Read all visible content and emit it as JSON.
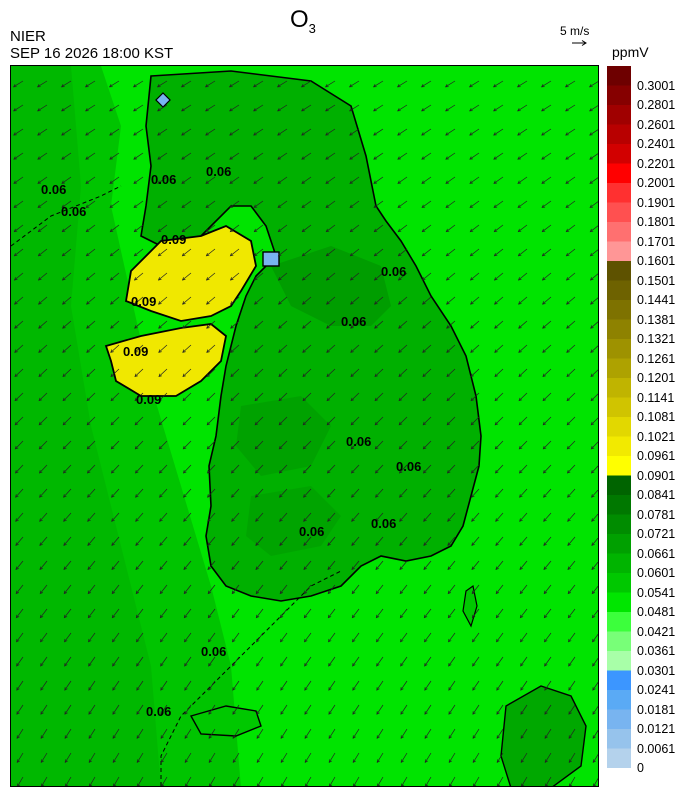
{
  "header": {
    "title_main": "O",
    "title_sub": "3",
    "agency": "NIER",
    "datetime": "SEP 16 2026 18:00 KST",
    "wind_reference": "5 m/s",
    "unit": "ppmV"
  },
  "contour_labels": [
    "0.06",
    "0.09"
  ],
  "colorbar": {
    "bins": [
      {
        "label": "0.3001",
        "color": "#6e0000"
      },
      {
        "label": "0.2801",
        "color": "#860000"
      },
      {
        "label": "0.2601",
        "color": "#a00000"
      },
      {
        "label": "0.2401",
        "color": "#b80000"
      },
      {
        "label": "0.2201",
        "color": "#d20000"
      },
      {
        "label": "0.2001",
        "color": "#ff0000"
      },
      {
        "label": "0.1901",
        "color": "#ff3030"
      },
      {
        "label": "0.1801",
        "color": "#ff5050"
      },
      {
        "label": "0.1701",
        "color": "#ff7070"
      },
      {
        "label": "0.1601",
        "color": "#ff9696"
      },
      {
        "label": "0.1501",
        "color": "#5e5200"
      },
      {
        "label": "0.1441",
        "color": "#6e6200"
      },
      {
        "label": "0.1381",
        "color": "#7e7200"
      },
      {
        "label": "0.1321",
        "color": "#8e8200"
      },
      {
        "label": "0.1261",
        "color": "#9e9200"
      },
      {
        "label": "0.1201",
        "color": "#aea200"
      },
      {
        "label": "0.1141",
        "color": "#c0b400"
      },
      {
        "label": "0.1081",
        "color": "#d0c400"
      },
      {
        "label": "0.1021",
        "color": "#e2d800"
      },
      {
        "label": "0.0961",
        "color": "#f2ea00"
      },
      {
        "label": "0.0901",
        "color": "#ffff00"
      },
      {
        "label": "0.0841",
        "color": "#006400"
      },
      {
        "label": "0.0781",
        "color": "#007800"
      },
      {
        "label": "0.0721",
        "color": "#008c00"
      },
      {
        "label": "0.0661",
        "color": "#00a000"
      },
      {
        "label": "0.0601",
        "color": "#00b400"
      },
      {
        "label": "0.0541",
        "color": "#00c800"
      },
      {
        "label": "0.0481",
        "color": "#00e600"
      },
      {
        "label": "0.0421",
        "color": "#3cff3c"
      },
      {
        "label": "0.0361",
        "color": "#78ff78"
      },
      {
        "label": "0.0301",
        "color": "#a8ffa8"
      },
      {
        "label": "0.0241",
        "color": "#3c96ff"
      },
      {
        "label": "0.0181",
        "color": "#5aaaf5"
      },
      {
        "label": "0.0121",
        "color": "#78b4f0"
      },
      {
        "label": "0.0061",
        "color": "#96c3ec"
      },
      {
        "label": "0",
        "color": "#b4d2ec"
      }
    ]
  },
  "colors": {
    "sea_green": "#00e600",
    "land_green": "#00c800",
    "dark_green": "#00a800",
    "high_yellow": "#f0e800",
    "low_blue": "#78b4f0"
  }
}
